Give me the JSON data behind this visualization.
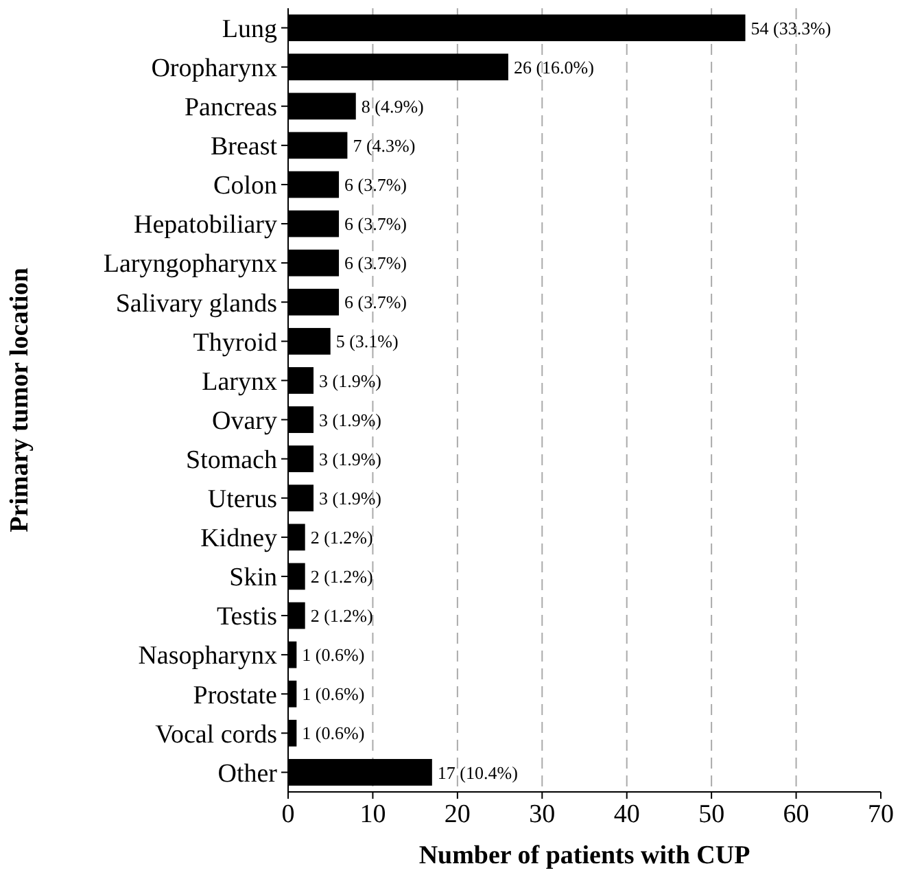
{
  "chart_data": {
    "type": "bar",
    "orientation": "horizontal",
    "xlabel": "Number of patients with CUP",
    "ylabel": "Primary tumor location",
    "categories": [
      "Lung",
      "Oropharynx",
      "Pancreas",
      "Breast",
      "Colon",
      "Hepatobiliary",
      "Laryngopharynx",
      "Salivary glands",
      "Thyroid",
      "Larynx",
      "Ovary",
      "Stomach",
      "Uterus",
      "Kidney",
      "Skin",
      "Testis",
      "Nasopharynx",
      "Prostate",
      "Vocal cords",
      "Other"
    ],
    "values": [
      54,
      26,
      8,
      7,
      6,
      6,
      6,
      6,
      5,
      3,
      3,
      3,
      3,
      2,
      2,
      2,
      1,
      1,
      1,
      17
    ],
    "value_labels": [
      "54 (33.3%)",
      "26 (16.0%)",
      "8 (4.9%)",
      "7 (4.3%)",
      "6 (3.7%)",
      "6 (3.7%)",
      "6 (3.7%)",
      "6 (3.7%)",
      "5 (3.1%)",
      "3 (1.9%)",
      "3 (1.9%)",
      "3 (1.9%)",
      "3 (1.9%)",
      "2 (1.2%)",
      "2 (1.2%)",
      "2 (1.2%)",
      "1 (0.6%)",
      "1 (0.6%)",
      "1 (0.6%)",
      "17 (10.4%)"
    ],
    "color": "#000000",
    "xlim": [
      0,
      70
    ],
    "xticks": [
      0,
      10,
      20,
      30,
      40,
      50,
      60,
      70
    ],
    "grid": "x"
  }
}
